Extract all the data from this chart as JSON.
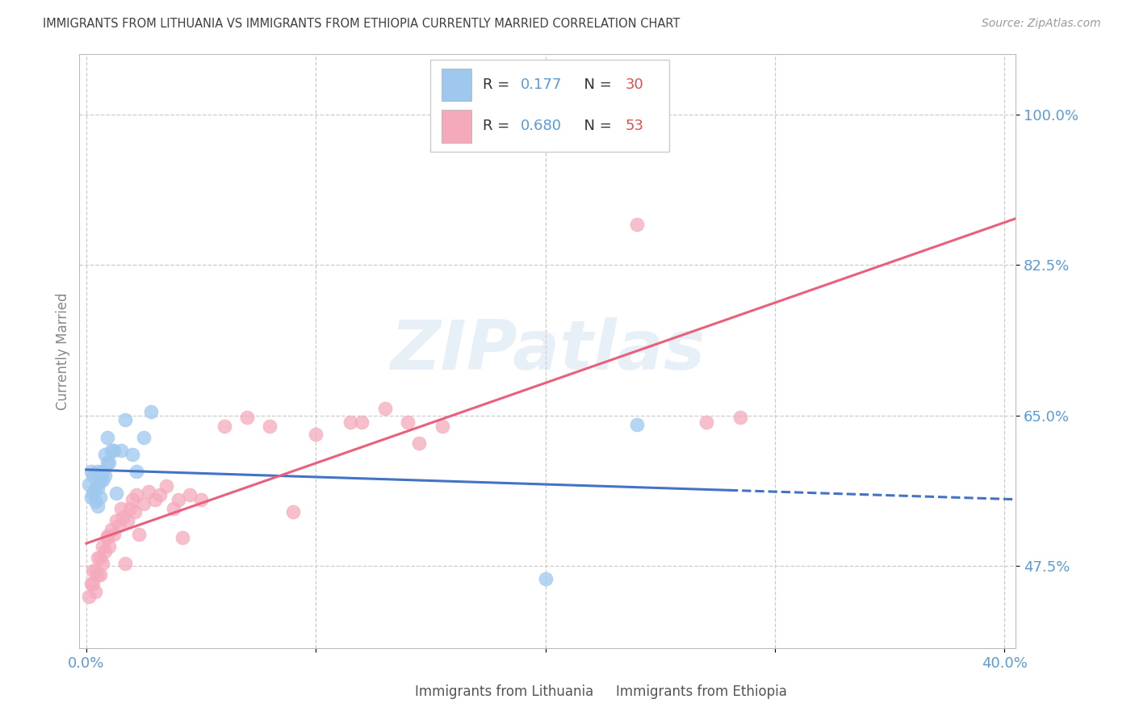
{
  "title": "IMMIGRANTS FROM LITHUANIA VS IMMIGRANTS FROM ETHIOPIA CURRENTLY MARRIED CORRELATION CHART",
  "source": "Source: ZipAtlas.com",
  "ylabel": "Currently Married",
  "yticks": [
    0.475,
    0.65,
    0.825,
    1.0
  ],
  "ytick_labels": [
    "47.5%",
    "65.0%",
    "82.5%",
    "100.0%"
  ],
  "xlim": [
    -0.003,
    0.405
  ],
  "ylim": [
    0.38,
    1.07
  ],
  "watermark": "ZIPatlas",
  "legend_label1": "Immigrants from Lithuania",
  "legend_label2": "Immigrants from Ethiopia",
  "lithuania_color": "#9EC8EE",
  "ethiopia_color": "#F5AABC",
  "lithuania_line_color": "#4472C4",
  "ethiopia_line_color": "#E8607A",
  "axis_label_color": "#5B9BD5",
  "title_color": "#404040",
  "grid_color": "#CCCCCC",
  "background_color": "#FFFFFF",
  "r_lith": "0.177",
  "n_lith": "30",
  "r_eth": "0.680",
  "n_eth": "53",
  "lithuania_x": [
    0.001,
    0.002,
    0.002,
    0.003,
    0.003,
    0.004,
    0.004,
    0.005,
    0.005,
    0.005,
    0.006,
    0.006,
    0.007,
    0.007,
    0.008,
    0.008,
    0.009,
    0.009,
    0.01,
    0.011,
    0.012,
    0.013,
    0.015,
    0.017,
    0.02,
    0.022,
    0.025,
    0.028,
    0.2,
    0.24
  ],
  "lithuania_y": [
    0.57,
    0.555,
    0.585,
    0.56,
    0.58,
    0.55,
    0.565,
    0.545,
    0.565,
    0.585,
    0.555,
    0.575,
    0.575,
    0.585,
    0.58,
    0.605,
    0.595,
    0.625,
    0.595,
    0.61,
    0.61,
    0.56,
    0.61,
    0.645,
    0.605,
    0.585,
    0.625,
    0.655,
    0.46,
    0.64
  ],
  "ethiopia_x": [
    0.001,
    0.002,
    0.003,
    0.003,
    0.004,
    0.004,
    0.005,
    0.005,
    0.006,
    0.006,
    0.007,
    0.007,
    0.008,
    0.009,
    0.009,
    0.01,
    0.011,
    0.012,
    0.013,
    0.014,
    0.015,
    0.016,
    0.017,
    0.018,
    0.019,
    0.02,
    0.021,
    0.022,
    0.023,
    0.025,
    0.027,
    0.03,
    0.032,
    0.035,
    0.038,
    0.04,
    0.042,
    0.045,
    0.05,
    0.06,
    0.07,
    0.08,
    0.09,
    0.1,
    0.115,
    0.13,
    0.145,
    0.155,
    0.24,
    0.27,
    0.285,
    0.14,
    0.12
  ],
  "ethiopia_y": [
    0.44,
    0.455,
    0.455,
    0.47,
    0.445,
    0.47,
    0.465,
    0.485,
    0.465,
    0.485,
    0.478,
    0.498,
    0.492,
    0.51,
    0.508,
    0.498,
    0.518,
    0.512,
    0.528,
    0.522,
    0.542,
    0.532,
    0.478,
    0.528,
    0.542,
    0.552,
    0.538,
    0.558,
    0.512,
    0.548,
    0.562,
    0.552,
    0.558,
    0.568,
    0.542,
    0.552,
    0.508,
    0.558,
    0.552,
    0.638,
    0.648,
    0.638,
    0.538,
    0.628,
    0.642,
    0.658,
    0.618,
    0.638,
    0.872,
    0.642,
    0.648,
    0.642,
    0.642
  ]
}
